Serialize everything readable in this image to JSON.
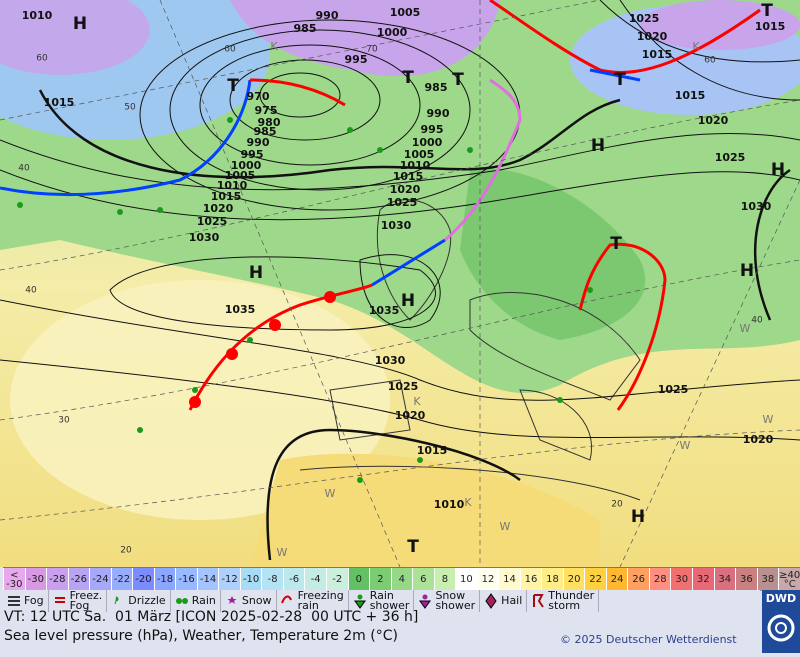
{
  "map": {
    "isobar_labels": [
      "990",
      "985",
      "995",
      "1005",
      "1000",
      "970",
      "975",
      "980",
      "985",
      "990",
      "995",
      "1000",
      "1005",
      "1010",
      "1015",
      "1020",
      "1025",
      "1030",
      "1015",
      "1010",
      "985",
      "990",
      "995",
      "1000",
      "1005",
      "1010",
      "1015",
      "1020",
      "1025",
      "1030",
      "1035",
      "1035",
      "1030",
      "1025",
      "1020",
      "1015",
      "1010",
      "1025",
      "1020",
      "1015",
      "1015",
      "1015",
      "1020",
      "1025",
      "1030",
      "1025",
      "1020"
    ],
    "pressure_centers": [
      "H",
      "T",
      "T",
      "T",
      "H",
      "H",
      "H",
      "H",
      "H",
      "T",
      "T",
      "T",
      "H",
      "T"
    ],
    "grid_labels": [
      "60",
      "50",
      "40",
      "40",
      "30",
      "20",
      "60",
      "70",
      "60",
      "40",
      "20"
    ],
    "small_marks": [
      "K",
      "K",
      "W",
      "W",
      "K",
      "W",
      "W",
      "K",
      "W",
      "W"
    ]
  },
  "color_scale": {
    "cells": [
      {
        "label": "<\n-30",
        "color": "#e8a8ec"
      },
      {
        "label": "-30",
        "color": "#d898e4"
      },
      {
        "label": "-28",
        "color": "#c8a0ee"
      },
      {
        "label": "-26",
        "color": "#b8a4f2"
      },
      {
        "label": "-24",
        "color": "#a8a8f8"
      },
      {
        "label": "-22",
        "color": "#98acfc"
      },
      {
        "label": "-20",
        "color": "#7c8cff"
      },
      {
        "label": "-18",
        "color": "#8aa6ff"
      },
      {
        "label": "-16",
        "color": "#98b8ff"
      },
      {
        "label": "-14",
        "color": "#a4c4ff"
      },
      {
        "label": "-12",
        "color": "#b0d0fc"
      },
      {
        "label": "-10",
        "color": "#a8dcf4"
      },
      {
        "label": "-8",
        "color": "#b4e4f4"
      },
      {
        "label": "-6",
        "color": "#bce8ec"
      },
      {
        "label": "-4",
        "color": "#c4ece4"
      },
      {
        "label": "-2",
        "color": "#cceedc"
      },
      {
        "label": "0",
        "color": "#64c064"
      },
      {
        "label": "2",
        "color": "#7ccc74"
      },
      {
        "label": "4",
        "color": "#96d888"
      },
      {
        "label": "6",
        "color": "#ace298"
      },
      {
        "label": "8",
        "color": "#c8eeb0"
      },
      {
        "label": "10",
        "color": "#ffffff"
      },
      {
        "label": "12",
        "color": "#fffff0"
      },
      {
        "label": "14",
        "color": "#fffad0"
      },
      {
        "label": "16",
        "color": "#fff4a8"
      },
      {
        "label": "18",
        "color": "#ffee88"
      },
      {
        "label": "20",
        "color": "#ffe060"
      },
      {
        "label": "22",
        "color": "#ffd040"
      },
      {
        "label": "24",
        "color": "#ffb830"
      },
      {
        "label": "26",
        "color": "#ffa060"
      },
      {
        "label": "28",
        "color": "#ff9080"
      },
      {
        "label": "30",
        "color": "#f07070"
      },
      {
        "label": "32",
        "color": "#e86878"
      },
      {
        "label": "34",
        "color": "#d87080"
      },
      {
        "label": "36",
        "color": "#c88080"
      },
      {
        "label": "38",
        "color": "#b89090"
      },
      {
        "label": "≥40\n°C",
        "color": "#c8a8a8"
      }
    ]
  },
  "legend": [
    "Fog",
    "Freez.\nFog",
    "Drizzle",
    "Rain",
    "Snow",
    "Freezing\nrain",
    "Rain\nshower",
    "Snow\nshower",
    "Hail",
    "Thunder\nstorm"
  ],
  "logo": "DWD",
  "footer": {
    "valid_time": "VT: 12 UTC Sa.  01 März [ICON 2025-02-28  00 UTC + 36 h]",
    "description": "Sea level pressure (hPa), Weather, Temperature 2m (°C)",
    "copyright": "© 2025 Deutscher Wetterdienst"
  }
}
